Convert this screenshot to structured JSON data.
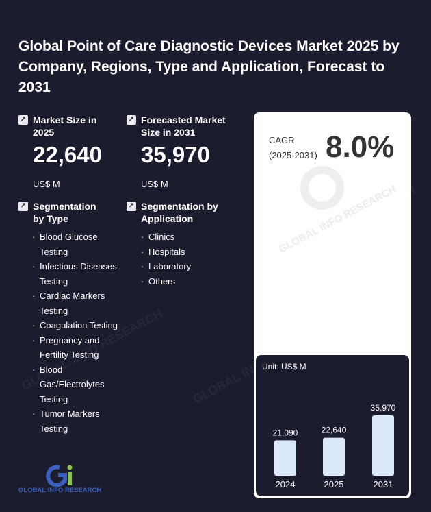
{
  "title": "Global Point of Care Diagnostic Devices Market 2025 by Company, Regions, Type and Application, Forecast to 2031",
  "market_size": {
    "label": "Market Size in 2025",
    "value": "22,640",
    "unit": "US$ M"
  },
  "forecast": {
    "label": "Forecasted Market Size in 2031",
    "value": "35,970",
    "unit": "US$ M"
  },
  "segmentation_type": {
    "label": "Segmentation by Type",
    "items": [
      "Blood Glucose Testing",
      "Infectious Diseases Testing",
      "Cardiac Markers Testing",
      "Coagulation Testing",
      "Pregnancy and Fertility Testing",
      "Blood Gas/Electrolytes Testing",
      "Tumor Markers Testing"
    ]
  },
  "segmentation_application": {
    "label": "Segmentation by Application",
    "items": [
      "Clinics",
      "Hospitals",
      "Laboratory",
      "Others"
    ]
  },
  "cagr": {
    "label": "CAGR",
    "period": "(2025-2031)",
    "value": "8.0%"
  },
  "watermark_text": "GLOBAL INFO RESEARCH",
  "logo_text": "GLOBAL INFO RESEARCH",
  "colors": {
    "background": "#1b1c2e",
    "bar": "#dbe9fb",
    "card": "#ffffff"
  },
  "chart_data": {
    "type": "bar",
    "unit_label": "Unit: US$ M",
    "categories": [
      "2024",
      "2025",
      "2031"
    ],
    "values": [
      21090,
      22640,
      35970
    ],
    "value_labels": [
      "21,090",
      "22,640",
      "35,970"
    ],
    "ylim": [
      0,
      35970
    ]
  }
}
